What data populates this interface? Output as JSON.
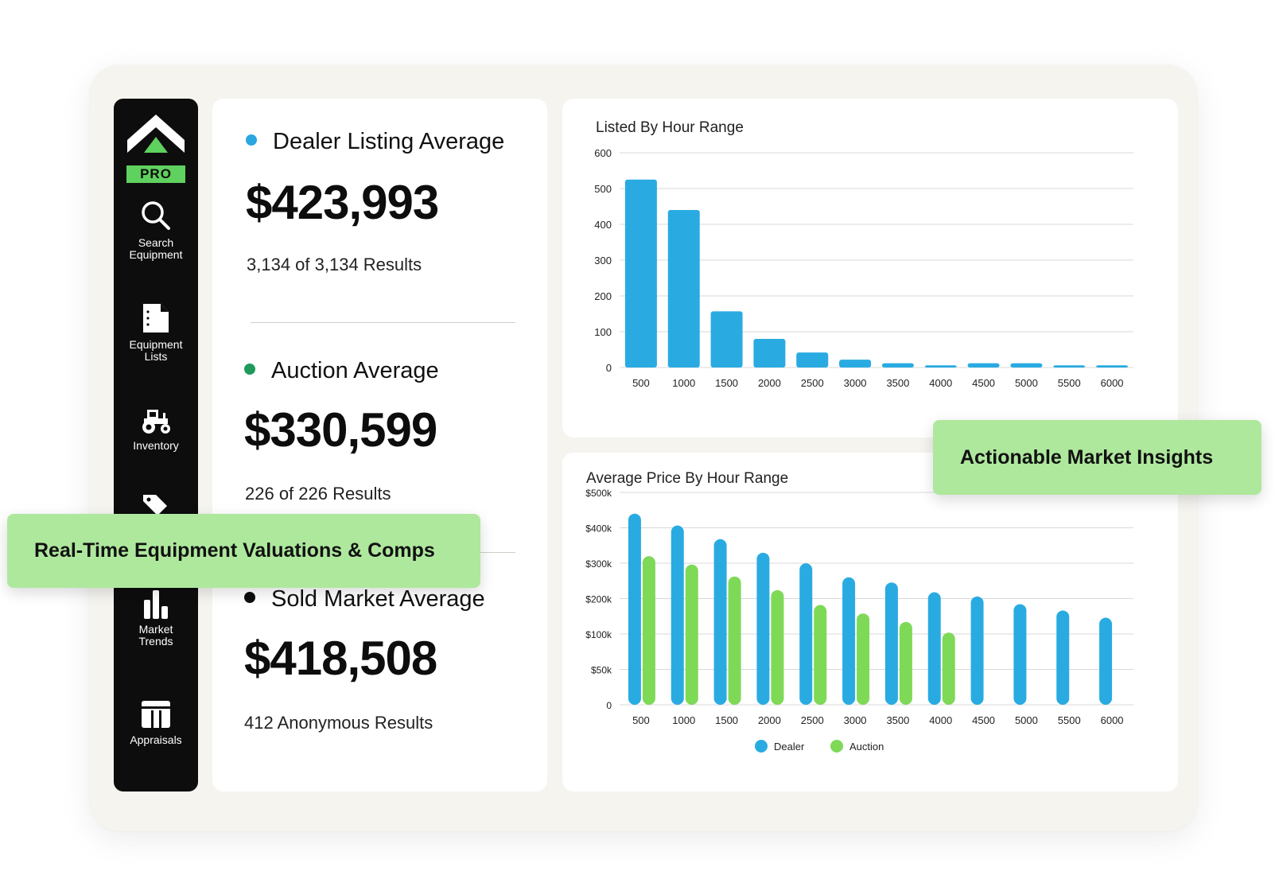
{
  "sidebar": {
    "badge": "PRO",
    "items": [
      {
        "label": "Search\nEquipment",
        "icon": "search-icon"
      },
      {
        "label": "Equipment\nLists",
        "icon": "document-icon"
      },
      {
        "label": "Inventory",
        "icon": "tractor-icon"
      },
      {
        "label": "",
        "icon": "tag-icon"
      },
      {
        "label": "Market\nTrends",
        "icon": "bar-chart-icon"
      },
      {
        "label": "Appraisals",
        "icon": "table-icon"
      }
    ]
  },
  "stats": [
    {
      "title": "Dealer Listing Average",
      "value": "$423,993",
      "sub": "3,134 of 3,134 Results",
      "dot_color": "#2aa6e0"
    },
    {
      "title": "Auction Average",
      "value": "$330,599",
      "sub": "226 of 226 Results",
      "dot_color": "#1e9a5a"
    },
    {
      "title": "Sold Market Average",
      "value": "$418,508",
      "sub": "412 Anonymous Results",
      "dot_color": "#0d0d0d"
    }
  ],
  "callouts": {
    "left": "Real-Time Equipment Valuations & Comps",
    "right": "Actionable Market Insights"
  },
  "colors": {
    "dealer": "#29abe2",
    "auction": "#7ed957",
    "callout": "#aee89d",
    "brand_green": "#5ed15e"
  },
  "chart_data": [
    {
      "type": "bar",
      "title": "Listed By Hour Range",
      "categories": [
        "500",
        "1000",
        "1500",
        "2000",
        "2500",
        "3000",
        "3500",
        "4000",
        "4500",
        "5000",
        "5500",
        "6000"
      ],
      "values": [
        525,
        440,
        157,
        80,
        42,
        22,
        12,
        6,
        12,
        12,
        6,
        6
      ],
      "ylim": [
        0,
        600
      ],
      "yticks": [
        "0",
        "100",
        "200",
        "300",
        "400",
        "500",
        "600"
      ],
      "grid": true
    },
    {
      "type": "bar",
      "title": "Average Price By Hour Range",
      "categories": [
        "500",
        "1000",
        "1500",
        "2000",
        "2500",
        "3000",
        "3500",
        "4000",
        "4500",
        "5000",
        "5500",
        "6000"
      ],
      "series": [
        {
          "name": "Dealer",
          "values": [
            450,
            422,
            390,
            358,
            333,
            300,
            288,
            265,
            255,
            237,
            222,
            205
          ]
        },
        {
          "name": "Auction",
          "values": [
            350,
            330,
            302,
            270,
            235,
            215,
            195,
            170,
            null,
            null,
            null,
            null
          ]
        }
      ],
      "yticks": [
        "0",
        "$50k",
        "$100k",
        "$200k",
        "$300k",
        "$400k",
        "$500k"
      ],
      "ylim": [
        0,
        500
      ],
      "legend": "bottom-center",
      "grid": true
    }
  ]
}
